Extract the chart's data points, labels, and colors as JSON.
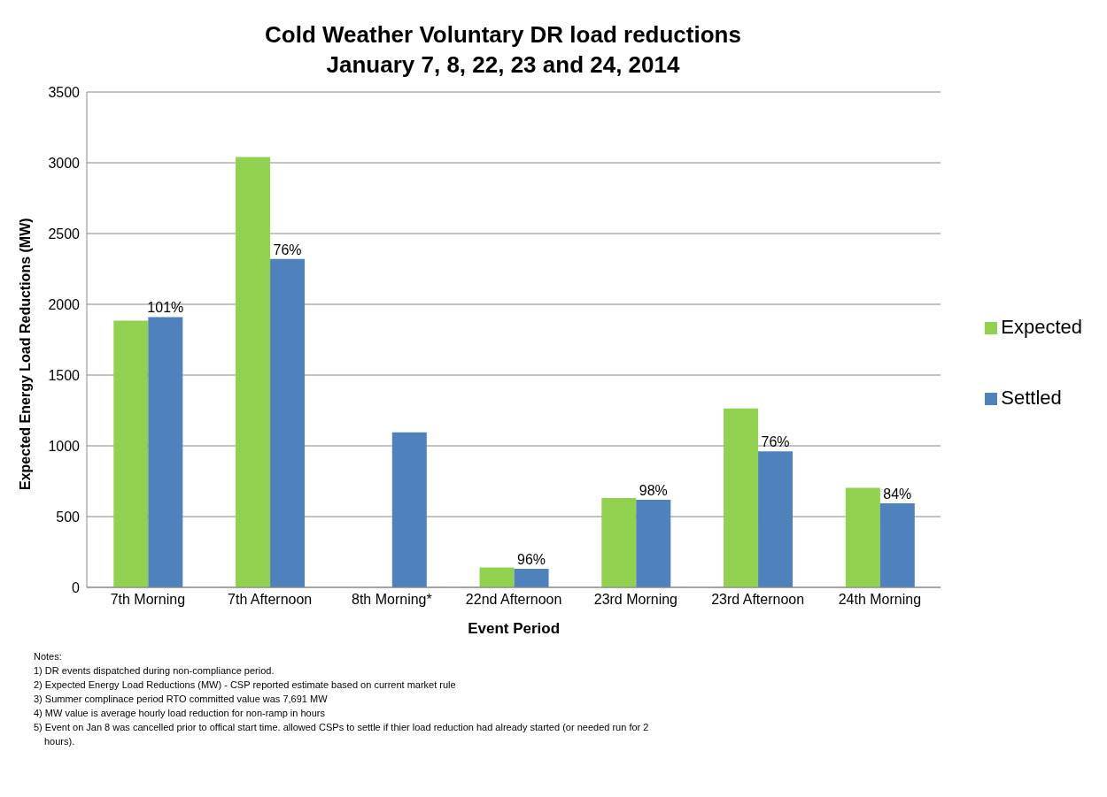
{
  "chart_data": {
    "type": "bar",
    "title": "Cold Weather Voluntary DR load reductions",
    "subtitle": "January 7, 8, 22, 23 and 24, 2014",
    "xlabel": "Event Period",
    "ylabel": "Expected Energy Load Reductions (MW)",
    "categories": [
      "7th Morning",
      "7th Afternoon",
      "8th Morning*",
      "22nd Afternoon",
      "23rd Morning",
      "23rd Afternoon",
      "24th Morning"
    ],
    "series": [
      {
        "name": "Expected",
        "color": "#92d050",
        "values": [
          1885,
          3040,
          null,
          140,
          632,
          1264,
          703
        ]
      },
      {
        "name": "Settled",
        "color": "#4f81bd",
        "values": [
          1910,
          2320,
          1095,
          131,
          619,
          961,
          593
        ]
      }
    ],
    "ylim": [
      0,
      3500
    ],
    "yticks": [
      0,
      500,
      1000,
      1500,
      2000,
      2500,
      3000,
      3500
    ],
    "grid": "y",
    "legend": "right",
    "annotations": [
      {
        "text": "101%",
        "x": "7th Morning",
        "y": 1910
      },
      {
        "text": "76%",
        "x": "7th Afternoon",
        "y": 2320
      },
      {
        "text": "96%",
        "x": "22nd Afternoon",
        "y": 131
      },
      {
        "text": "98%",
        "x": "23rd Morning",
        "y": 619
      },
      {
        "text": "76%",
        "x": "23rd Afternoon",
        "y": 961
      },
      {
        "text": "84%",
        "x": "24th Morning",
        "y": 593
      },
      "Notes:",
      "1) DR events dispatched during non-compliance period.",
      "2) Expected Energy Load Reductions (MW) - CSP reported estimate based on current market rule",
      "3) Summer complinace period RTO committed value was 7,691 MW",
      "4) MW value is average hourly load reduction for non-ramp in hours",
      "5) Event on Jan 8 was cancelled prior to offical start time. allowed CSPs to settle if thier load reduction had already started (or needed  run for 2 hours)."
    ]
  }
}
